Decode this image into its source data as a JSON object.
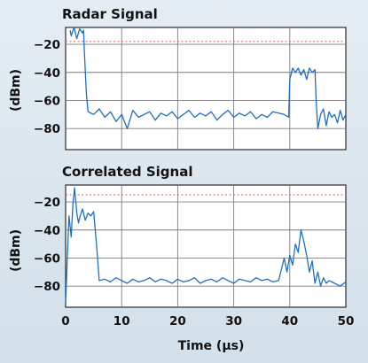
{
  "chart_data": [
    {
      "type": "line",
      "title": "Radar Signal",
      "xlabel": "",
      "ylabel": "(dBm)",
      "xlim": [
        0,
        50
      ],
      "ylim": [
        -95,
        -8
      ],
      "x_ticks": [
        0,
        10,
        20,
        30,
        40,
        50
      ],
      "y_ticks": [
        -20,
        -40,
        -60,
        -80
      ],
      "y_tick_labels": [
        "−20",
        "−40",
        "−60",
        "−80"
      ],
      "grid": true,
      "reference_line": {
        "y": -18,
        "color": "#e06a6a",
        "style": "dotted"
      },
      "series": [
        {
          "color": "#1f6fc2",
          "x": [
            0.8,
            1.0,
            1.5,
            2.0,
            2.5,
            3.0,
            3.2,
            3.4,
            3.7,
            4.0,
            5,
            6,
            7,
            8,
            9,
            10,
            11,
            12,
            13,
            14,
            15,
            16,
            17,
            18,
            19,
            20,
            21,
            22,
            23,
            24,
            25,
            26,
            27,
            28,
            29,
            30,
            31,
            32,
            33,
            34,
            35,
            36,
            37,
            38,
            39,
            39.8,
            40.0,
            40.5,
            41,
            41.5,
            42,
            42.5,
            43,
            43.5,
            44,
            44.5,
            44.7,
            45,
            45.5,
            46,
            46.5,
            47,
            47.5,
            48,
            48.5,
            49,
            49.5,
            50
          ],
          "values": [
            -10,
            -14,
            -8,
            -16,
            -9,
            -12,
            -10,
            -30,
            -55,
            -68,
            -70,
            -66,
            -72,
            -68,
            -75,
            -70,
            -80,
            -67,
            -72,
            -70,
            -68,
            -74,
            -69,
            -71,
            -68,
            -73,
            -70,
            -67,
            -72,
            -69,
            -71,
            -68,
            -74,
            -70,
            -67,
            -72,
            -69,
            -71,
            -68,
            -73,
            -70,
            -72,
            -68,
            -69,
            -70,
            -72,
            -45,
            -37,
            -40,
            -37,
            -42,
            -38,
            -45,
            -37,
            -40,
            -38,
            -60,
            -80,
            -70,
            -66,
            -78,
            -68,
            -72,
            -70,
            -76,
            -67,
            -74,
            -70
          ]
        }
      ]
    },
    {
      "type": "line",
      "title": "Correlated Signal",
      "xlabel": "Time (μs)",
      "ylabel": "(dBm)",
      "xlim": [
        0,
        50
      ],
      "ylim": [
        -95,
        -8
      ],
      "x_ticks": [
        0,
        10,
        20,
        30,
        40,
        50
      ],
      "y_ticks": [
        -20,
        -40,
        -60,
        -80
      ],
      "y_tick_labels": [
        "−20",
        "−40",
        "−60",
        "−80"
      ],
      "grid": true,
      "reference_line": {
        "y": -15,
        "color": "#e06a6a",
        "style": "dotted"
      },
      "series": [
        {
          "color": "#1f6fc2",
          "x": [
            0,
            0.3,
            0.6,
            1.0,
            1.3,
            1.6,
            2.0,
            2.3,
            2.6,
            3.0,
            3.5,
            4.0,
            4.5,
            5.0,
            5.5,
            6,
            7,
            8,
            9,
            10,
            11,
            12,
            13,
            14,
            15,
            16,
            17,
            18,
            19,
            20,
            21,
            22,
            23,
            24,
            25,
            26,
            27,
            28,
            29,
            30,
            31,
            32,
            33,
            34,
            35,
            36,
            37,
            38,
            39,
            39.5,
            40,
            40.5,
            41,
            41.5,
            42,
            42.5,
            43,
            43.5,
            44,
            44.5,
            45,
            45.5,
            46,
            46.5,
            47,
            48,
            49,
            50
          ],
          "values": [
            -92,
            -60,
            -30,
            -45,
            -22,
            -10,
            -28,
            -35,
            -30,
            -25,
            -33,
            -28,
            -30,
            -27,
            -50,
            -76,
            -75,
            -77,
            -74,
            -76,
            -78,
            -75,
            -77,
            -76,
            -74,
            -77,
            -75,
            -76,
            -78,
            -75,
            -77,
            -76,
            -74,
            -78,
            -76,
            -75,
            -77,
            -74,
            -76,
            -78,
            -75,
            -76,
            -77,
            -74,
            -76,
            -75,
            -77,
            -76,
            -60,
            -70,
            -58,
            -65,
            -50,
            -56,
            -40,
            -48,
            -58,
            -70,
            -62,
            -78,
            -70,
            -80,
            -74,
            -78,
            -76,
            -78,
            -80,
            -77
          ]
        }
      ]
    }
  ]
}
